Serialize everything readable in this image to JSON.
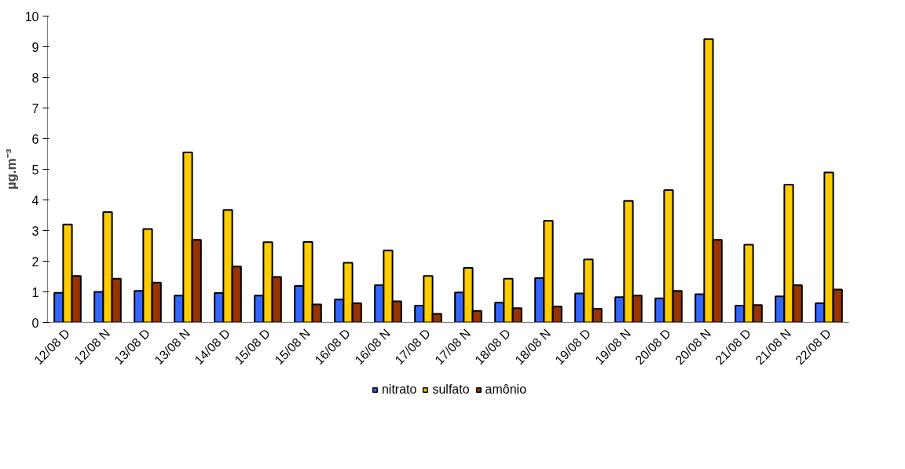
{
  "chart_data": {
    "type": "bar",
    "ylabel": "µg.m⁻³",
    "categories": [
      "12/08 D",
      "12/08 N",
      "13/08 D",
      "13/08 N",
      "14/08 D",
      "15/08 D",
      "15/08 N",
      "16/08 D",
      "16/08 N",
      "17/08 D",
      "17/08 N",
      "18/08 D",
      "18/08 N",
      "19/08 D",
      "19/08 N",
      "20/08 D",
      "20/08 N",
      "21/08 D",
      "21/08 N",
      "22/08 D"
    ],
    "series": [
      {
        "name": "nitrato",
        "color": "#3366ff",
        "values": [
          0.97,
          1.0,
          1.03,
          0.88,
          0.96,
          0.88,
          1.19,
          0.75,
          1.22,
          0.55,
          0.98,
          0.65,
          1.45,
          0.95,
          0.83,
          0.79,
          0.92,
          0.55,
          0.85,
          0.63
        ]
      },
      {
        "name": "sulfato",
        "color": "#ffcc00",
        "values": [
          3.2,
          3.6,
          3.05,
          5.55,
          3.67,
          2.62,
          2.63,
          1.95,
          2.35,
          1.52,
          1.78,
          1.43,
          3.32,
          2.06,
          3.97,
          4.32,
          9.25,
          2.54,
          4.5,
          4.9
        ]
      },
      {
        "name": "amônio",
        "color": "#993300",
        "values": [
          1.52,
          1.43,
          1.3,
          2.7,
          1.83,
          1.49,
          0.59,
          0.63,
          0.69,
          0.28,
          0.38,
          0.47,
          0.52,
          0.45,
          0.88,
          1.03,
          2.7,
          0.57,
          1.22,
          1.08
        ]
      }
    ],
    "ylim": [
      0,
      10
    ],
    "yticks": [
      0,
      1,
      2,
      3,
      4,
      5,
      6,
      7,
      8,
      9,
      10
    ],
    "grid": false,
    "legend": "bottom"
  }
}
